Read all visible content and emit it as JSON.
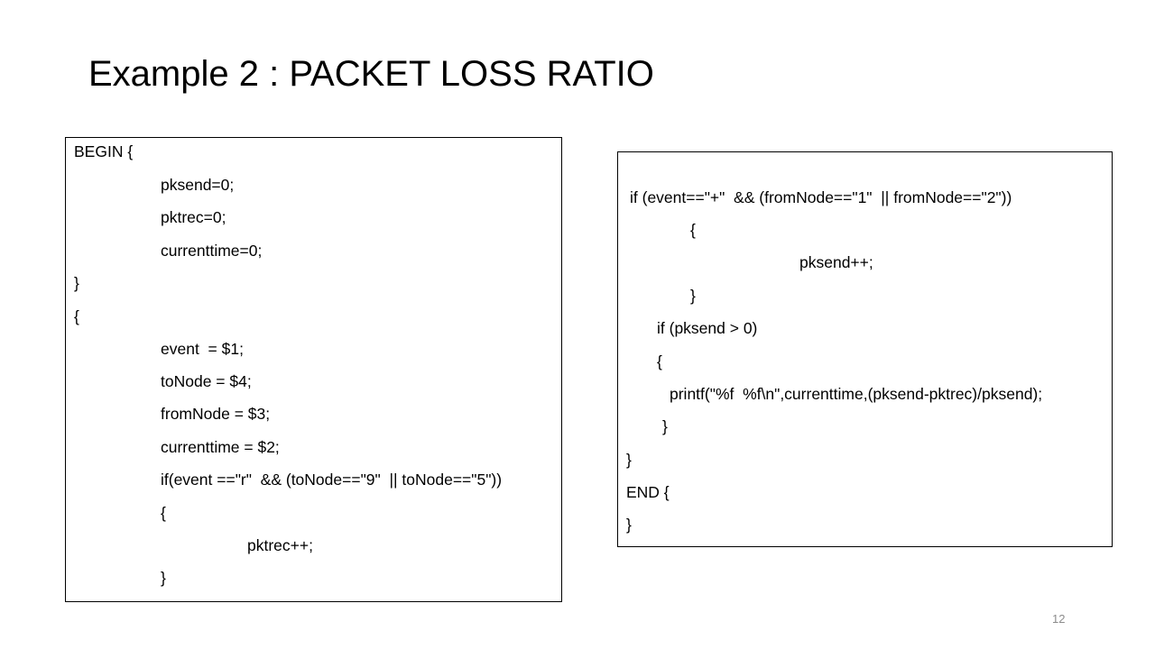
{
  "slide": {
    "title": "Example 2 : PACKET LOSS RATIO",
    "page_number": "12"
  },
  "left_code": {
    "lines": [
      "BEGIN {",
      "pksend=0;",
      "pktrec=0;",
      "currenttime=0;",
      "}",
      "{",
      "event  = $1;",
      "toNode = $4;",
      "fromNode = $3;",
      "currenttime = $2;",
      "if(event ==\"r\"  && (toNode==\"9\"  || toNode==\"5\"))",
      "{",
      "pktrec++;",
      "}"
    ]
  },
  "right_code": {
    "lines": [
      "if (event==\"+\"  && (fromNode==\"1\"  || fromNode==\"2\"))",
      "{",
      "pksend++;",
      "}",
      "if (pksend > 0)",
      "{",
      "printf(\"%f  %f\\n\",currenttime,(pksend-pktrec)/pksend);",
      "}",
      "}",
      "END {",
      "}"
    ]
  }
}
